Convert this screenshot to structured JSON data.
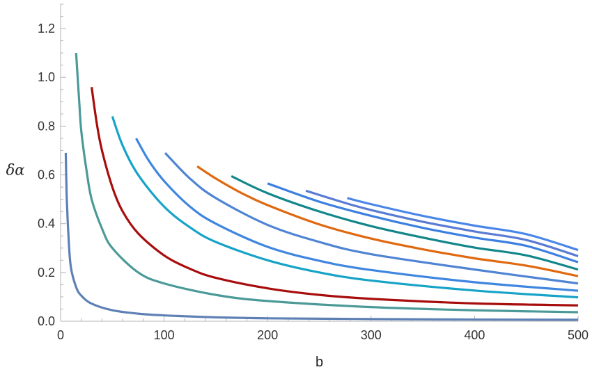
{
  "chart_data": {
    "type": "line",
    "xlabel": "b",
    "ylabel": "δα",
    "xlim": [
      0,
      500
    ],
    "ylim": [
      0,
      1.3
    ],
    "xticks": [
      0,
      100,
      200,
      300,
      400,
      500
    ],
    "yticks": [
      0.0,
      0.2,
      0.4,
      0.6,
      0.8,
      1.0,
      1.2
    ],
    "xtick_labels": [
      "0",
      "100",
      "200",
      "300",
      "400",
      "500"
    ],
    "ytick_labels": [
      "0.0",
      "0.2",
      "0.4",
      "0.6",
      "0.8",
      "1.0",
      "1.2"
    ],
    "grid": false,
    "legend": "none",
    "series": [
      {
        "color": "#5e81b5",
        "points": [
          [
            5,
            0.69
          ],
          [
            6,
            0.5
          ],
          [
            8,
            0.32
          ],
          [
            10,
            0.22
          ],
          [
            15,
            0.14
          ],
          [
            20,
            0.105
          ],
          [
            30,
            0.072
          ],
          [
            50,
            0.045
          ],
          [
            75,
            0.031
          ],
          [
            100,
            0.024
          ],
          [
            150,
            0.016
          ],
          [
            200,
            0.012
          ],
          [
            300,
            0.009
          ],
          [
            400,
            0.007
          ],
          [
            500,
            0.006
          ]
        ]
      },
      {
        "color": "#4b9a98",
        "points": [
          [
            15,
            1.1
          ],
          [
            18,
            0.9
          ],
          [
            20,
            0.78
          ],
          [
            25,
            0.62
          ],
          [
            30,
            0.5
          ],
          [
            40,
            0.38
          ],
          [
            50,
            0.3
          ],
          [
            75,
            0.2
          ],
          [
            100,
            0.155
          ],
          [
            150,
            0.108
          ],
          [
            200,
            0.083
          ],
          [
            300,
            0.058
          ],
          [
            400,
            0.045
          ],
          [
            500,
            0.037
          ]
        ]
      },
      {
        "color": "#a80d0d",
        "points": [
          [
            30,
            0.96
          ],
          [
            35,
            0.81
          ],
          [
            40,
            0.7
          ],
          [
            50,
            0.55
          ],
          [
            60,
            0.45
          ],
          [
            75,
            0.36
          ],
          [
            100,
            0.27
          ],
          [
            125,
            0.215
          ],
          [
            150,
            0.178
          ],
          [
            200,
            0.135
          ],
          [
            250,
            0.108
          ],
          [
            300,
            0.092
          ],
          [
            400,
            0.073
          ],
          [
            500,
            0.065
          ]
        ]
      },
      {
        "color": "#16a3c7",
        "points": [
          [
            50,
            0.84
          ],
          [
            60,
            0.72
          ],
          [
            75,
            0.6
          ],
          [
            100,
            0.47
          ],
          [
            125,
            0.385
          ],
          [
            150,
            0.325
          ],
          [
            200,
            0.25
          ],
          [
            250,
            0.2
          ],
          [
            300,
            0.167
          ],
          [
            400,
            0.126
          ],
          [
            500,
            0.098
          ]
        ]
      },
      {
        "color": "#3f86e0",
        "points": [
          [
            73,
            0.75
          ],
          [
            85,
            0.66
          ],
          [
            100,
            0.575
          ],
          [
            125,
            0.47
          ],
          [
            150,
            0.4
          ],
          [
            200,
            0.305
          ],
          [
            250,
            0.248
          ],
          [
            300,
            0.21
          ],
          [
            400,
            0.16
          ],
          [
            500,
            0.125
          ]
        ]
      },
      {
        "color": "#4f84d4",
        "points": [
          [
            101,
            0.69
          ],
          [
            125,
            0.585
          ],
          [
            150,
            0.505
          ],
          [
            200,
            0.395
          ],
          [
            250,
            0.325
          ],
          [
            300,
            0.275
          ],
          [
            400,
            0.212
          ],
          [
            500,
            0.155
          ]
        ]
      },
      {
        "color": "#e0680f",
        "points": [
          [
            132,
            0.635
          ],
          [
            150,
            0.585
          ],
          [
            175,
            0.525
          ],
          [
            200,
            0.476
          ],
          [
            250,
            0.397
          ],
          [
            300,
            0.339
          ],
          [
            350,
            0.295
          ],
          [
            400,
            0.258
          ],
          [
            450,
            0.228
          ],
          [
            500,
            0.185
          ]
        ]
      },
      {
        "color": "#12868a",
        "points": [
          [
            165,
            0.595
          ],
          [
            200,
            0.525
          ],
          [
            250,
            0.45
          ],
          [
            300,
            0.39
          ],
          [
            350,
            0.343
          ],
          [
            400,
            0.302
          ],
          [
            450,
            0.27
          ],
          [
            500,
            0.212
          ]
        ]
      },
      {
        "color": "#3d7fe0",
        "points": [
          [
            200,
            0.565
          ],
          [
            250,
            0.49
          ],
          [
            300,
            0.432
          ],
          [
            350,
            0.383
          ],
          [
            400,
            0.343
          ],
          [
            450,
            0.309
          ],
          [
            500,
            0.242
          ]
        ]
      },
      {
        "color": "#5a7bd4",
        "points": [
          [
            237,
            0.535
          ],
          [
            275,
            0.485
          ],
          [
            300,
            0.456
          ],
          [
            350,
            0.408
          ],
          [
            400,
            0.368
          ],
          [
            450,
            0.333
          ],
          [
            500,
            0.267
          ]
        ]
      },
      {
        "color": "#4a86e8",
        "points": [
          [
            277,
            0.505
          ],
          [
            300,
            0.48
          ],
          [
            350,
            0.432
          ],
          [
            400,
            0.392
          ],
          [
            450,
            0.357
          ],
          [
            500,
            0.292
          ]
        ]
      }
    ]
  }
}
